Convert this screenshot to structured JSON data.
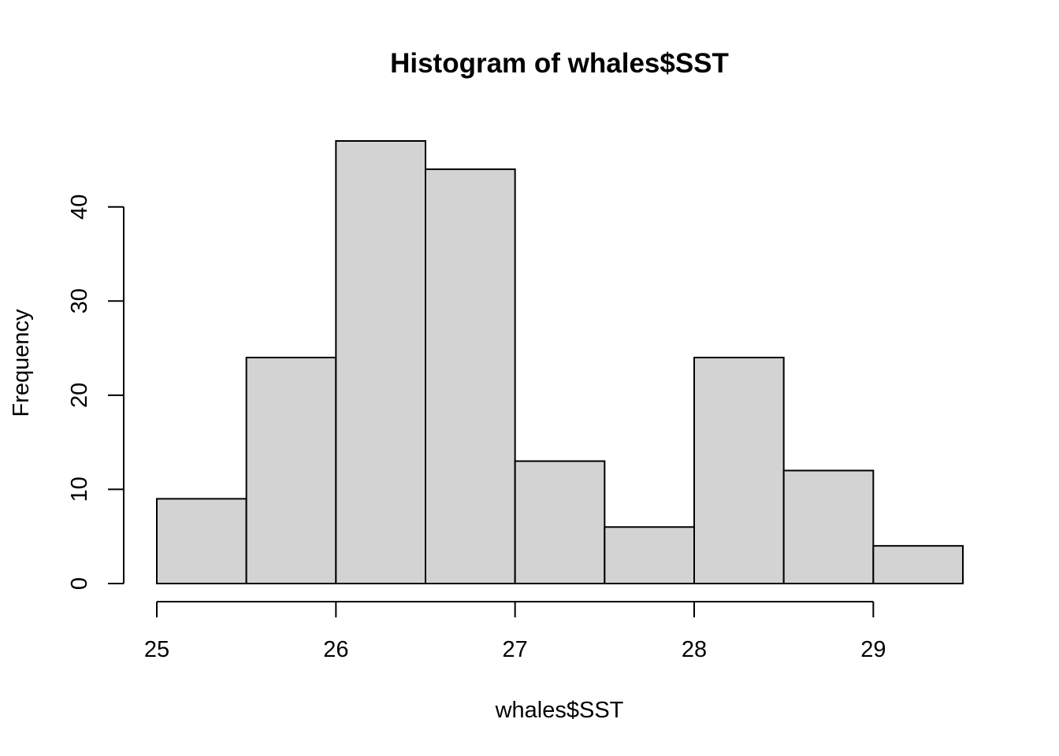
{
  "chart_data": {
    "type": "bar",
    "subtype": "histogram",
    "title": "Histogram of whales$SST",
    "xlabel": "whales$SST",
    "ylabel": "Frequency",
    "bins": [
      {
        "from": 25.0,
        "to": 25.5,
        "count": 9
      },
      {
        "from": 25.5,
        "to": 26.0,
        "count": 24
      },
      {
        "from": 26.0,
        "to": 26.5,
        "count": 47
      },
      {
        "from": 26.5,
        "to": 27.0,
        "count": 44
      },
      {
        "from": 27.0,
        "to": 27.5,
        "count": 13
      },
      {
        "from": 27.5,
        "to": 28.0,
        "count": 6
      },
      {
        "from": 28.0,
        "to": 28.5,
        "count": 24
      },
      {
        "from": 28.5,
        "to": 29.0,
        "count": 12
      },
      {
        "from": 29.0,
        "to": 29.5,
        "count": 4
      }
    ],
    "xlim": [
      25,
      29.5
    ],
    "ylim": [
      0,
      47
    ],
    "x_ticks": [
      25,
      26,
      27,
      28,
      29
    ],
    "y_ticks": [
      0,
      10,
      20,
      30,
      40
    ],
    "bar_fill": "#d3d3d3",
    "bar_stroke": "#000000",
    "grid": false,
    "legend": "none"
  }
}
